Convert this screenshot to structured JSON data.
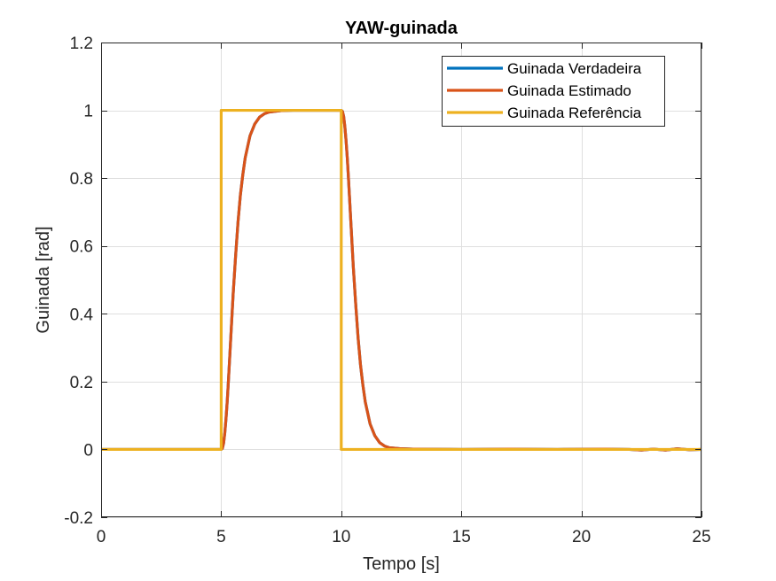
{
  "chart_data": {
    "type": "line",
    "title": "YAW-guinada",
    "xlabel": "Tempo [s]",
    "ylabel": "Guinada [rad]",
    "xlim": [
      0,
      25
    ],
    "ylim": [
      -0.2,
      1.2
    ],
    "xticks": [
      0,
      5,
      10,
      15,
      20,
      25
    ],
    "xtick_labels": [
      "0",
      "5",
      "10",
      "15",
      "20",
      "25"
    ],
    "yticks": [
      -0.2,
      0,
      0.2,
      0.4,
      0.6,
      0.8,
      1,
      1.2
    ],
    "ytick_labels": [
      "-0.2",
      "0",
      "0.2",
      "0.4",
      "0.6",
      "0.8",
      "1",
      "1.2"
    ],
    "grid": true,
    "legend_position": "top-right",
    "series": [
      {
        "name": "Guinada Verdadeira",
        "color": "#0072BD",
        "x": [
          0,
          5,
          5.05,
          5.1,
          5.15,
          5.2,
          5.25,
          5.3,
          5.4,
          5.5,
          5.6,
          5.7,
          5.8,
          5.9,
          6.0,
          6.2,
          6.4,
          6.6,
          6.8,
          7.0,
          7.5,
          8.0,
          9.0,
          10.0,
          10.05,
          10.1,
          10.15,
          10.2,
          10.25,
          10.3,
          10.4,
          10.5,
          10.6,
          10.7,
          10.8,
          10.9,
          11.0,
          11.2,
          11.4,
          11.6,
          11.8,
          12.0,
          12.5,
          13.0,
          15.0,
          17.0,
          19.0,
          21.0,
          22.0,
          22.5,
          23.0,
          23.5,
          24.0,
          24.5,
          25.0
        ],
        "y": [
          0,
          0,
          0.003,
          0.018,
          0.048,
          0.09,
          0.14,
          0.2,
          0.33,
          0.46,
          0.57,
          0.67,
          0.75,
          0.81,
          0.86,
          0.925,
          0.96,
          0.98,
          0.99,
          0.995,
          0.999,
          1.0,
          1.0,
          1.0,
          0.997,
          0.982,
          0.952,
          0.91,
          0.86,
          0.8,
          0.67,
          0.54,
          0.43,
          0.33,
          0.25,
          0.19,
          0.14,
          0.075,
          0.04,
          0.02,
          0.01,
          0.005,
          0.002,
          0.001,
          0.0,
          0.001,
          0.0,
          0.001,
          0.0,
          -0.002,
          0.001,
          -0.002,
          0.002,
          -0.001,
          0.0
        ]
      },
      {
        "name": "Guinada Estimado",
        "color": "#D95319",
        "x": [
          0,
          5,
          5.05,
          5.1,
          5.15,
          5.2,
          5.25,
          5.3,
          5.4,
          5.5,
          5.6,
          5.7,
          5.8,
          5.9,
          6.0,
          6.2,
          6.4,
          6.6,
          6.8,
          7.0,
          7.5,
          8.0,
          9.0,
          10.0,
          10.05,
          10.1,
          10.15,
          10.2,
          10.25,
          10.3,
          10.4,
          10.5,
          10.6,
          10.7,
          10.8,
          10.9,
          11.0,
          11.2,
          11.4,
          11.6,
          11.8,
          12.0,
          12.5,
          13.0,
          15.0,
          17.0,
          19.0,
          21.0,
          22.0,
          22.5,
          23.0,
          23.5,
          24.0,
          24.5,
          25.0
        ],
        "y": [
          0,
          0,
          0.003,
          0.018,
          0.048,
          0.09,
          0.14,
          0.2,
          0.33,
          0.46,
          0.57,
          0.67,
          0.75,
          0.81,
          0.86,
          0.925,
          0.96,
          0.98,
          0.99,
          0.995,
          0.999,
          1.0,
          1.0,
          1.0,
          0.997,
          0.982,
          0.952,
          0.91,
          0.86,
          0.8,
          0.67,
          0.54,
          0.43,
          0.33,
          0.25,
          0.19,
          0.14,
          0.075,
          0.04,
          0.02,
          0.01,
          0.005,
          0.002,
          0.001,
          0.0,
          0.001,
          0.0,
          0.001,
          0.0,
          -0.002,
          0.001,
          -0.002,
          0.002,
          -0.001,
          0.0
        ]
      },
      {
        "name": "Guinada Referência",
        "color": "#EDB120",
        "x": [
          0,
          5,
          5,
          10,
          10,
          25
        ],
        "y": [
          0,
          0,
          1,
          1,
          0,
          0
        ]
      }
    ]
  }
}
